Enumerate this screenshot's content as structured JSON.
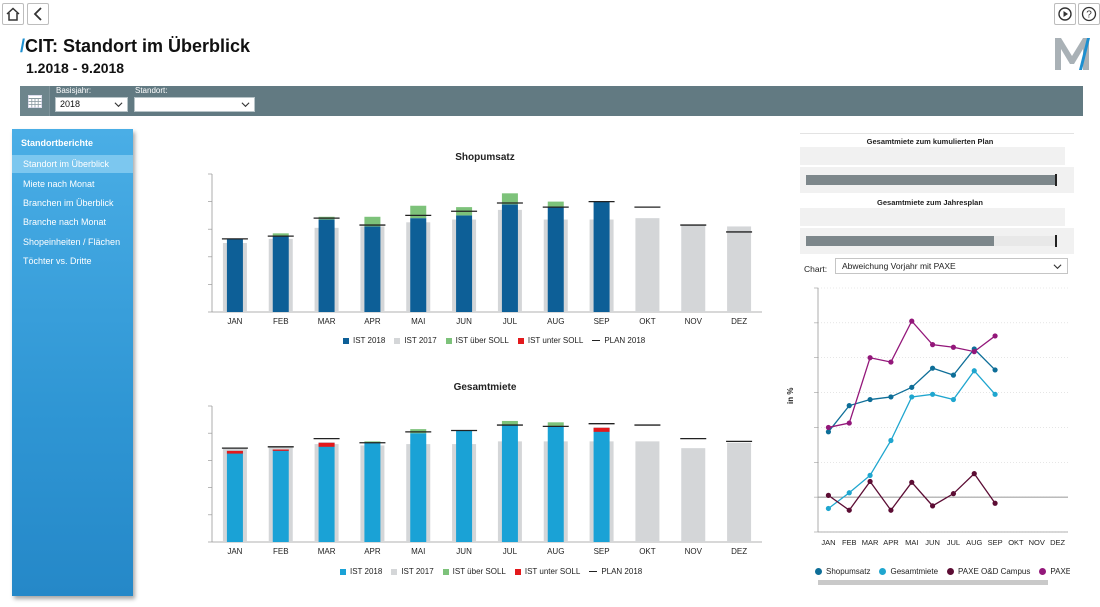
{
  "toolbar": {
    "home_icon": "home-icon",
    "back_icon": "chevron-left-icon",
    "replay_icon": "replay-icon",
    "help_icon": "help-icon"
  },
  "header": {
    "slash": "/",
    "title": "CIT: Standort im Überblick",
    "subtitle": "1.2018 - 9.2018",
    "logo_text": "M"
  },
  "filters": {
    "calendar_icon": "calendar-icon",
    "basisjahr_label": "Basisjahr:",
    "basisjahr_value": "2018",
    "standort_label": "Standort:",
    "standort_value": ""
  },
  "sidebar": {
    "heading": "Standortberichte",
    "items": [
      {
        "label": "Standort im Überblick",
        "active": true
      },
      {
        "label": "Miete nach Monat",
        "active": false
      },
      {
        "label": "Branchen im Überblick",
        "active": false
      },
      {
        "label": "Branche nach Monat",
        "active": false
      },
      {
        "label": "Shopeinheiten / Flächen",
        "active": false
      },
      {
        "label": "Töchter vs. Dritte",
        "active": false
      }
    ]
  },
  "kpi_panels": {
    "title1": "Gesamtmiete zum kumulierten Plan",
    "progress1": 1.0,
    "title2": "Gesamtmiete zum Jahresplan",
    "progress2": 0.75
  },
  "chart_selector": {
    "label": "Chart:",
    "value": "Abweichung Vorjahr mit PAXE"
  },
  "colors": {
    "ist2018_dark": "#0d5f97",
    "ist2018_light": "#1aa2d6",
    "ist2017": "#d4d6d8",
    "ueber_soll": "#7dc27a",
    "unter_soll": "#e3191c",
    "plan": "#222222",
    "filterbar": "#627a82",
    "sidebar": "#3aa0dd",
    "shopumsatz": "#0e6e98",
    "gesamtmiete": "#1fa6cf",
    "paxe_od": "#5c0d34",
    "paxe_eins": "#93177a"
  },
  "chart_data": [
    {
      "type": "bar",
      "title": "Shopumsatz",
      "categories": [
        "JAN",
        "FEB",
        "MAR",
        "APR",
        "MAI",
        "JUN",
        "JUL",
        "AUG",
        "SEP",
        "OKT",
        "NOV",
        "DEZ"
      ],
      "ylim": [
        0,
        100
      ],
      "series": [
        {
          "name": "IST 2018",
          "values": [
            53,
            55,
            67,
            62,
            68,
            70,
            78,
            76,
            80,
            null,
            null,
            null
          ]
        },
        {
          "name": "IST 2017",
          "values": [
            50,
            53,
            61,
            62,
            65,
            67,
            74,
            67,
            67,
            68,
            63,
            62
          ]
        },
        {
          "name": "IST über SOLL",
          "values": [
            0,
            2,
            2,
            7,
            9,
            6,
            8,
            4,
            0,
            null,
            null,
            null
          ]
        },
        {
          "name": "IST unter SOLL",
          "values": [
            0,
            0,
            0,
            0,
            0,
            0,
            0,
            0,
            0,
            null,
            null,
            null
          ]
        },
        {
          "name": "PLAN 2018",
          "values": [
            53,
            55,
            68,
            63,
            70,
            73,
            79,
            76,
            80,
            76,
            63,
            58
          ]
        }
      ]
    },
    {
      "type": "bar",
      "title": "Gesamtmiete",
      "categories": [
        "JAN",
        "FEB",
        "MAR",
        "APR",
        "MAI",
        "JUN",
        "JUL",
        "AUG",
        "SEP",
        "OKT",
        "NOV",
        "DEZ"
      ],
      "ylim": [
        0,
        100
      ],
      "series": [
        {
          "name": "IST 2018",
          "values": [
            67,
            68,
            73,
            73,
            80,
            82,
            86,
            85,
            84,
            null,
            null,
            null
          ]
        },
        {
          "name": "IST 2017",
          "values": [
            69,
            70,
            72,
            71,
            72,
            72,
            74,
            74,
            74,
            74,
            69,
            73
          ]
        },
        {
          "name": "IST über SOLL",
          "values": [
            0,
            0,
            0,
            1,
            3,
            0,
            3,
            3,
            0,
            null,
            null,
            null
          ]
        },
        {
          "name": "IST unter SOLL",
          "values": [
            2,
            1,
            3,
            0,
            0,
            0,
            0,
            0,
            3,
            null,
            null,
            null
          ]
        },
        {
          "name": "PLAN 2018",
          "values": [
            69,
            70,
            76,
            73,
            81,
            82,
            86,
            85,
            87,
            86,
            76,
            74
          ]
        }
      ]
    },
    {
      "type": "line",
      "title": "",
      "ylabel": "in %",
      "categories": [
        "JAN",
        "FEB",
        "MAR",
        "APR",
        "MAI",
        "JUN",
        "JUL",
        "AUG",
        "SEP",
        "OKT",
        "NOV",
        "DEZ"
      ],
      "ylim": [
        -40,
        240
      ],
      "series": [
        {
          "name": "Shopumsatz",
          "values": [
            75,
            105,
            112,
            115,
            126,
            148,
            140,
            170,
            146,
            null,
            null,
            null
          ]
        },
        {
          "name": "Gesamtmiete",
          "values": [
            -13,
            5,
            25,
            65,
            115,
            118,
            112,
            145,
            118,
            null,
            null,
            null
          ]
        },
        {
          "name": "PAXE O&D Campus",
          "values": [
            2,
            -15,
            18,
            -15,
            17,
            -10,
            4,
            27,
            -7,
            null,
            null,
            null
          ]
        },
        {
          "name": "PAXE Eins",
          "values": [
            80,
            85,
            160,
            155,
            202,
            175,
            172,
            167,
            185,
            null,
            null,
            null
          ]
        }
      ]
    }
  ]
}
